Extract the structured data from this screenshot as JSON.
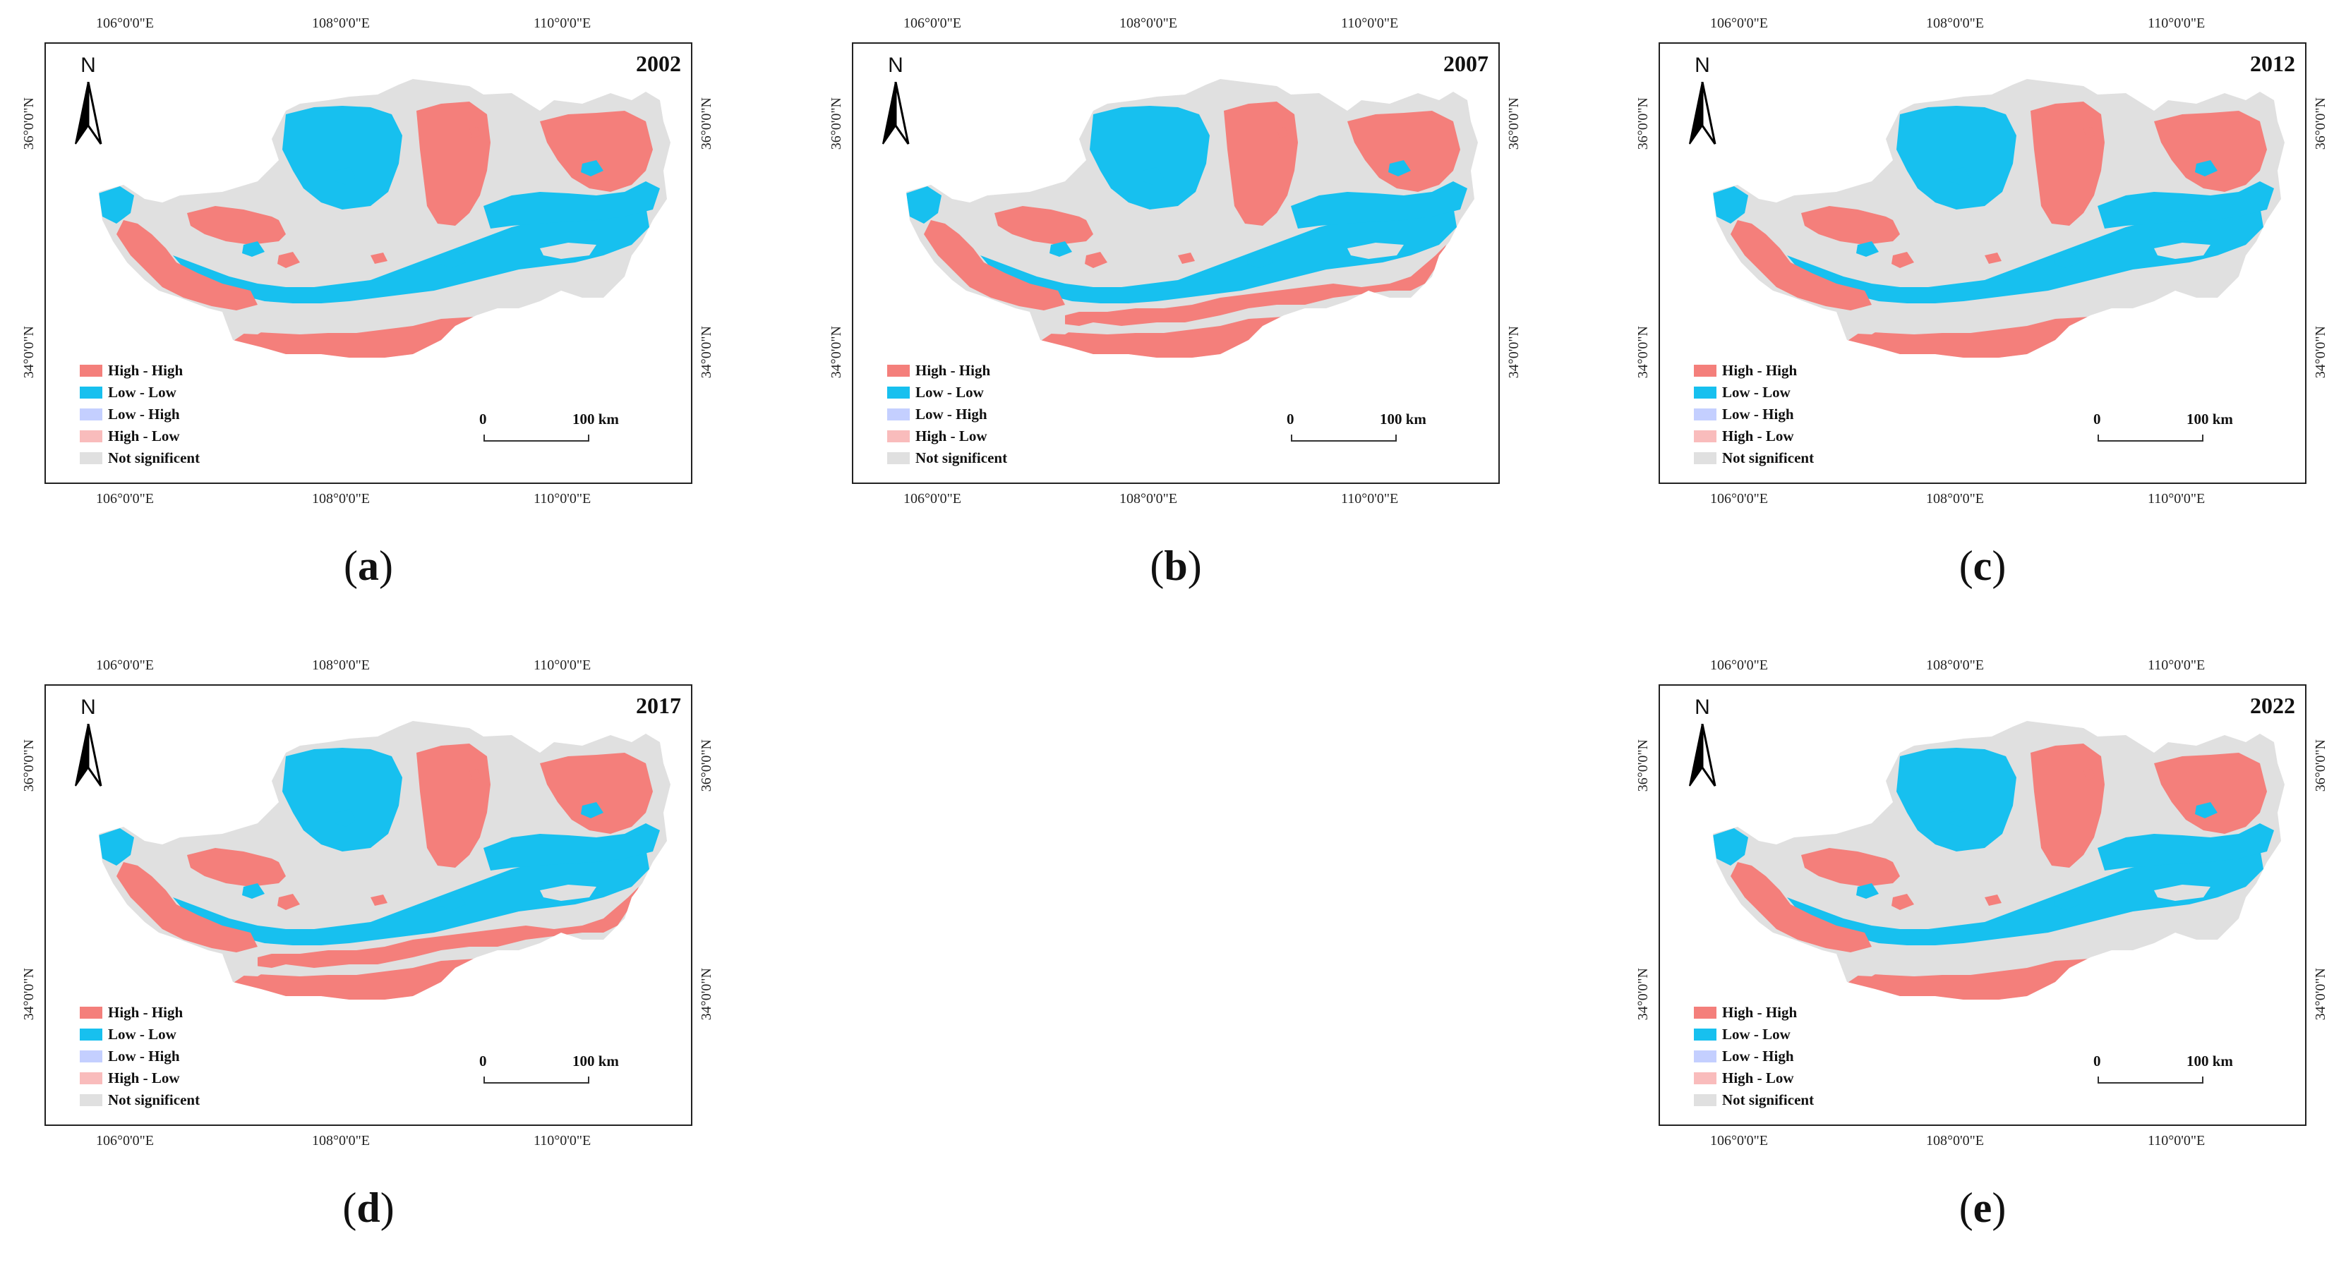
{
  "colors": {
    "high_high": "#f47f7b",
    "low_low": "#17c0ef",
    "low_high": "#c4cfff",
    "high_low": "#f9bcbc",
    "not_significant": "#e0e0e0"
  },
  "axis_labels": {
    "lon_106": "106°0'0\"E",
    "lon_108": "108°0'0\"E",
    "lon_110": "110°0'0\"E",
    "lat_36": "36°0'0\"N",
    "lat_34": "34°0'0\"N"
  },
  "north_arrow": {
    "label": "N",
    "icon": "north-arrow-icon"
  },
  "legend": [
    {
      "label": "High - High",
      "color_key": "high_high"
    },
    {
      "label": "Low - Low",
      "color_key": "low_low"
    },
    {
      "label": "Low - High",
      "color_key": "low_high"
    },
    {
      "label": "High - Low",
      "color_key": "high_low"
    },
    {
      "label": "Not significent",
      "color_key": "not_significant"
    }
  ],
  "scale_bar": {
    "zero": "0",
    "distance": "100 km"
  },
  "panels": [
    {
      "id": "a",
      "year": "2002",
      "label_open": "(",
      "label_letter": "a",
      "label_close": ")"
    },
    {
      "id": "b",
      "year": "2007",
      "label_open": "(",
      "label_letter": "b",
      "label_close": ")"
    },
    {
      "id": "c",
      "year": "2012",
      "label_open": "(",
      "label_letter": "c",
      "label_close": ")"
    },
    {
      "id": "d",
      "year": "2017",
      "label_open": "(",
      "label_letter": "d",
      "label_close": ")"
    },
    {
      "id": "e",
      "year": "2022",
      "label_open": "(",
      "label_letter": "e",
      "label_close": ")"
    }
  ]
}
